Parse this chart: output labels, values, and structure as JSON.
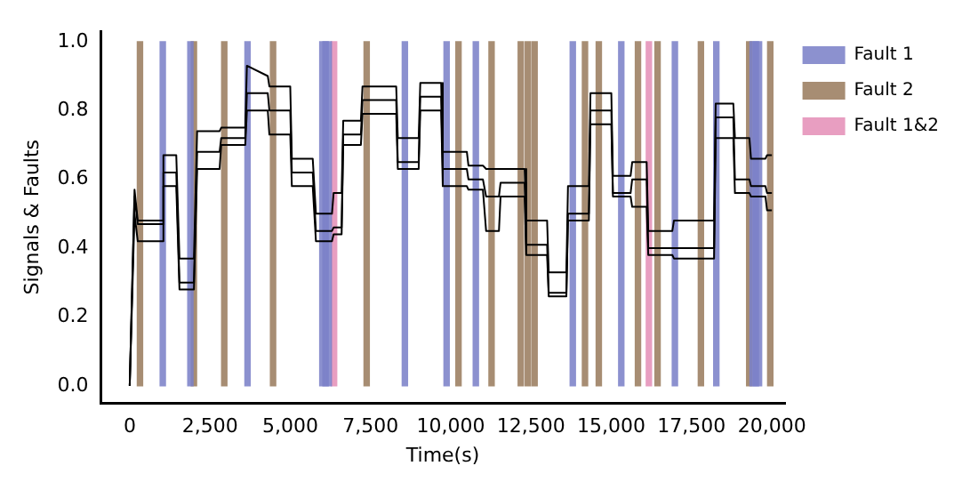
{
  "chart_data": {
    "type": "line",
    "xlabel": "Time(s)",
    "ylabel": "Signals & Faults",
    "x": [
      0,
      150,
      250,
      1000,
      1050,
      1450,
      1550,
      2000,
      2100,
      2800,
      2850,
      3600,
      3650,
      4300,
      4350,
      5000,
      5050,
      5700,
      5800,
      6300,
      6350,
      6600,
      6650,
      7200,
      7250,
      8300,
      8350,
      9000,
      9050,
      9700,
      9750,
      10500,
      10550,
      11000,
      11100,
      11500,
      11550,
      12300,
      12350,
      13000,
      13050,
      13600,
      13650,
      14300,
      14350,
      15000,
      15050,
      15600,
      15650,
      16100,
      16150,
      16900,
      16950,
      18200,
      18250,
      18800,
      18850,
      19300,
      19350,
      19800,
      19850,
      20000
    ],
    "series": [
      {
        "name": "Fault 1",
        "type": "bar",
        "color": "#7a80c8",
        "x": [
          1030,
          1890,
          3670,
          6000,
          6100,
          6200,
          8570,
          9870,
          10780,
          13800,
          15310,
          16980,
          18270,
          19400,
          19500,
          19600
        ],
        "values": [
          1,
          1,
          1,
          1,
          1,
          1,
          1,
          1,
          1,
          1,
          1,
          1,
          1,
          1,
          1,
          1
        ]
      },
      {
        "name": "Fault 2",
        "type": "bar",
        "color": "#9a7b5e",
        "x": [
          320,
          2000,
          2945,
          4465,
          7380,
          10240,
          11270,
          12180,
          12400,
          12610,
          14180,
          14610,
          15830,
          16440,
          17790,
          19295,
          19950
        ],
        "values": [
          1,
          1,
          1,
          1,
          1,
          1,
          1,
          1,
          1,
          1,
          1,
          1,
          1,
          1,
          1,
          1,
          1
        ]
      },
      {
        "name": "Fault 1&2",
        "type": "bar",
        "color": "#e58fb8",
        "x": [
          6365,
          16170
        ],
        "values": [
          1,
          1
        ]
      },
      {
        "color": "#000000",
        "values": [
          0,
          0.57,
          0.48,
          0.48,
          0.67,
          0.67,
          0.37,
          0.37,
          0.74,
          0.74,
          0.75,
          0.75,
          0.93,
          0.9,
          0.87,
          0.87,
          0.66,
          0.66,
          0.5,
          0.5,
          0.56,
          0.56,
          0.77,
          0.77,
          0.87,
          0.87,
          0.72,
          0.72,
          0.88,
          0.88,
          0.68,
          0.68,
          0.64,
          0.64,
          0.63,
          0.63,
          0.63,
          0.63,
          0.48,
          0.48,
          0.33,
          0.33,
          0.58,
          0.58,
          0.85,
          0.85,
          0.61,
          0.61,
          0.65,
          0.65,
          0.45,
          0.45,
          0.48,
          0.48,
          0.82,
          0.82,
          0.72,
          0.72,
          0.66,
          0.66,
          0.67,
          0.67
        ]
      },
      {
        "color": "#000000",
        "values": [
          0,
          0.55,
          0.47,
          0.47,
          0.62,
          0.62,
          0.3,
          0.3,
          0.68,
          0.68,
          0.72,
          0.72,
          0.85,
          0.85,
          0.8,
          0.8,
          0.62,
          0.62,
          0.45,
          0.45,
          0.46,
          0.46,
          0.73,
          0.73,
          0.83,
          0.83,
          0.65,
          0.65,
          0.84,
          0.84,
          0.63,
          0.63,
          0.6,
          0.6,
          0.55,
          0.55,
          0.59,
          0.59,
          0.41,
          0.41,
          0.27,
          0.27,
          0.5,
          0.5,
          0.8,
          0.8,
          0.56,
          0.56,
          0.6,
          0.6,
          0.4,
          0.4,
          0.4,
          0.4,
          0.78,
          0.78,
          0.6,
          0.6,
          0.58,
          0.58,
          0.56,
          0.56
        ]
      },
      {
        "color": "#000000",
        "values": [
          0,
          0.5,
          0.42,
          0.42,
          0.58,
          0.58,
          0.28,
          0.28,
          0.63,
          0.63,
          0.7,
          0.7,
          0.8,
          0.8,
          0.73,
          0.73,
          0.58,
          0.58,
          0.42,
          0.42,
          0.44,
          0.44,
          0.7,
          0.7,
          0.79,
          0.79,
          0.63,
          0.63,
          0.8,
          0.8,
          0.58,
          0.58,
          0.57,
          0.57,
          0.45,
          0.45,
          0.55,
          0.55,
          0.38,
          0.38,
          0.26,
          0.26,
          0.48,
          0.48,
          0.76,
          0.76,
          0.55,
          0.55,
          0.52,
          0.52,
          0.38,
          0.38,
          0.37,
          0.37,
          0.72,
          0.72,
          0.56,
          0.56,
          0.55,
          0.55,
          0.51,
          0.51
        ]
      }
    ],
    "xlim": [
      -900,
      20400
    ],
    "ylim": [
      -0.05,
      1.03
    ],
    "xticks": [
      0,
      {
        "value": 2500,
        "label": "2,500"
      },
      {
        "value": 5000,
        "label": "5,000"
      },
      {
        "value": 7500,
        "label": "7,500"
      },
      {
        "value": 10000,
        "label": "10,000"
      },
      {
        "value": 12500,
        "label": "12,500"
      },
      {
        "value": 15000,
        "label": "15,000"
      },
      {
        "value": 17500,
        "label": "17,500"
      },
      {
        "value": 20000,
        "label": "20,000"
      }
    ],
    "yticks": [
      {
        "value": 0,
        "label": "0.0"
      },
      {
        "value": 0.2,
        "label": "0.2"
      },
      {
        "value": 0.4,
        "label": "0.4"
      },
      {
        "value": 0.6,
        "label": "0.6"
      },
      {
        "value": 0.8,
        "label": "0.8"
      },
      {
        "value": 1,
        "label": "1.0"
      }
    ],
    "grid": false,
    "legend": "top right",
    "marker": "none",
    "line_style": "solid"
  }
}
